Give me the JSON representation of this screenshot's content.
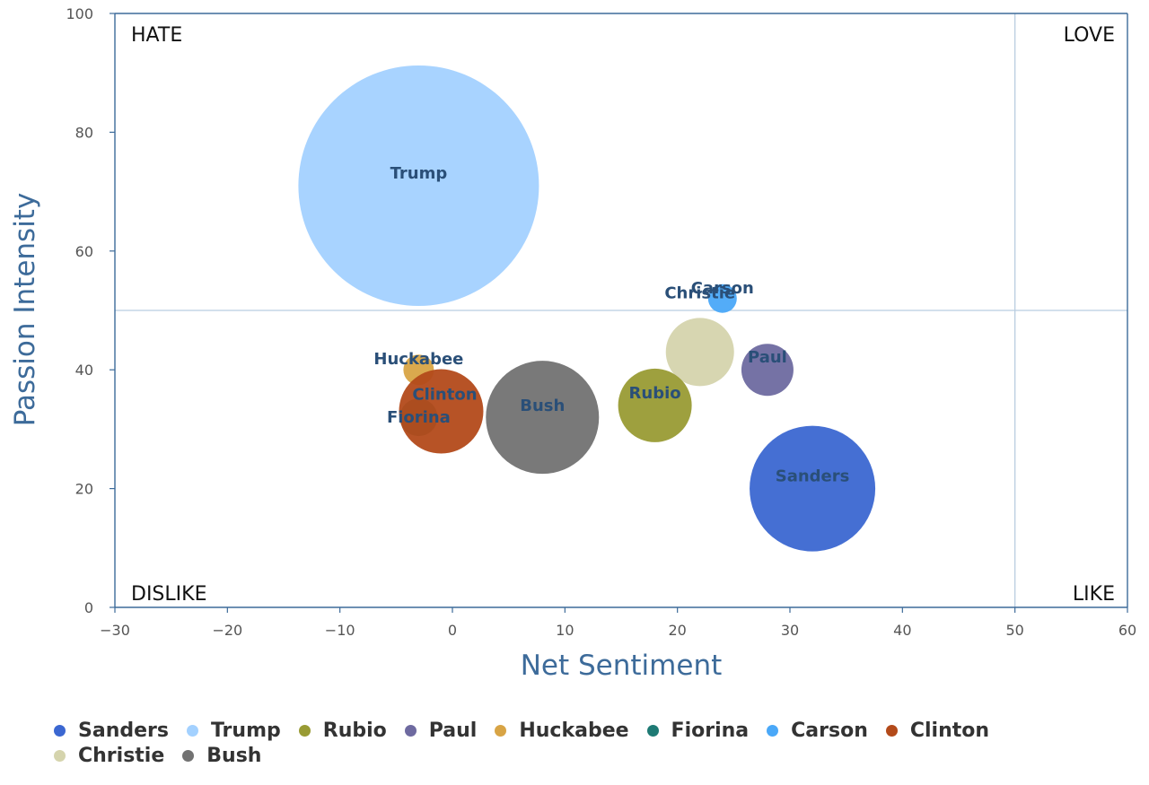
{
  "chart_data": {
    "type": "scatter",
    "xlabel": "Net Sentiment",
    "ylabel": "Passion Intensity",
    "xlim": [
      -30,
      60
    ],
    "ylim": [
      0,
      100
    ],
    "x_ticks": [
      "−30",
      "−20",
      "−10",
      "0",
      "10",
      "20",
      "30",
      "40",
      "50",
      "60"
    ],
    "y_ticks": [
      "0",
      "20",
      "40",
      "60",
      "80",
      "100"
    ],
    "reference_lines": {
      "x": 50,
      "y": 50
    },
    "quadrant_labels": {
      "top_left": "HATE",
      "top_right": "LOVE",
      "bottom_left": "DISLIKE",
      "bottom_right": "LIKE"
    },
    "legend_position": "bottom",
    "series": [
      {
        "name": "Sanders",
        "x": 32,
        "y": 20,
        "r": 70,
        "color": "#3b67d1"
      },
      {
        "name": "Trump",
        "x": -3,
        "y": 71,
        "r": 134,
        "color": "#a3d1ff"
      },
      {
        "name": "Rubio",
        "x": 18,
        "y": 34,
        "r": 41,
        "color": "#999b34"
      },
      {
        "name": "Paul",
        "x": 28,
        "y": 40,
        "r": 29,
        "color": "#6e6aa0"
      },
      {
        "name": "Huckabee",
        "x": -3,
        "y": 40,
        "r": 17,
        "color": "#d8a445"
      },
      {
        "name": "Fiorina",
        "x": -3,
        "y": 32,
        "r": 21,
        "color": "#1e7a74"
      },
      {
        "name": "Carson",
        "x": 24,
        "y": 52,
        "r": 16,
        "color": "#4aa8f8"
      },
      {
        "name": "Clinton",
        "x": -1,
        "y": 33,
        "r": 47,
        "color": "#b34a1a"
      },
      {
        "name": "Christie",
        "x": 22,
        "y": 43,
        "r": 38,
        "color": "#d5d4ad"
      },
      {
        "name": "Bush",
        "x": 8,
        "y": 32,
        "r": 63,
        "color": "#727272"
      }
    ]
  }
}
